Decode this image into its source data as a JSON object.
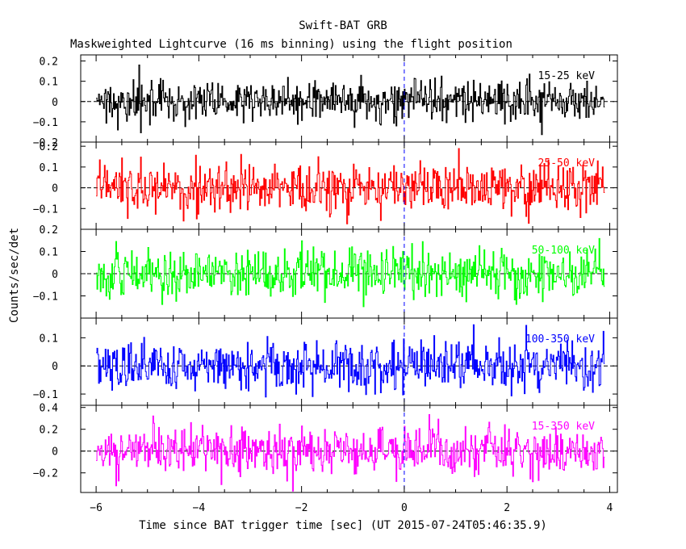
{
  "page": {
    "title": "Swift-BAT GRB",
    "subtitle": "Maskweighted Lightcurve (16 ms binning) using the flight position"
  },
  "chart_data": {
    "type": "line",
    "title": "Swift-BAT GRB",
    "subtitle": "Maskweighted Lightcurve (16 ms binning) using the flight position",
    "xlabel": "Time since BAT trigger time [sec] (UT 2015-07-24T05:46:35.9)",
    "ylabel": "Counts/sec/det",
    "xlim": [
      -6.3,
      4.15
    ],
    "x_range": [
      -6.0,
      3.9
    ],
    "bin_width": 0.016,
    "xticks": [
      -6,
      -4,
      -2,
      0,
      2,
      4
    ],
    "xtick_labels": [
      "−6",
      "−4",
      "−2",
      "0",
      "2",
      "4"
    ],
    "trigger_time": 0,
    "zero_line": true,
    "panels": [
      {
        "name": "15-25 keV",
        "color": "#000000",
        "ylim": [
          -0.2,
          0.23
        ],
        "noise_sd": 0.05,
        "yticks": [
          0.2,
          0.1,
          0,
          -0.1,
          -0.2
        ],
        "ytick_labels": [
          "0.2",
          "0.1",
          "0",
          "−0.1",
          "−0.2"
        ]
      },
      {
        "name": "25-50 keV",
        "color": "#ff0000",
        "ylim": [
          -0.2,
          0.22
        ],
        "noise_sd": 0.06,
        "yticks": [
          0.2,
          0.1,
          0,
          -0.1
        ],
        "ytick_labels": [
          "0.2",
          "0.1",
          "0",
          "−0.1"
        ]
      },
      {
        "name": "50-100 keV",
        "color": "#00ff00",
        "ylim": [
          -0.2,
          0.2
        ],
        "noise_sd": 0.055,
        "yticks": [
          0.2,
          0.1,
          0,
          -0.1
        ],
        "ytick_labels": [
          "0.2",
          "0.1",
          "0",
          "−0.1"
        ]
      },
      {
        "name": "100-350 keV",
        "color": "#0000ff",
        "ylim": [
          -0.14,
          0.17
        ],
        "noise_sd": 0.045,
        "yticks": [
          0.1,
          0,
          -0.1
        ],
        "ytick_labels": [
          "0.1",
          "0",
          "−0.1"
        ]
      },
      {
        "name": "15-350 keV",
        "color": "#ff00ff",
        "ylim": [
          -0.38,
          0.42
        ],
        "noise_sd": 0.11,
        "yticks": [
          0.4,
          0.2,
          0,
          -0.2
        ],
        "ytick_labels": [
          "0.4",
          "0.2",
          "0",
          "−0.2"
        ]
      }
    ]
  }
}
